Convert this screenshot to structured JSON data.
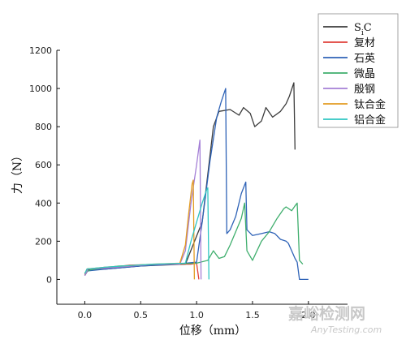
{
  "chart_data": {
    "type": "line",
    "title": "",
    "xlabel": "位移（mm）",
    "ylabel": "力（N）",
    "xlim": [
      -0.25,
      2.35
    ],
    "ylim": [
      -130,
      1200
    ],
    "xticks": [
      "0.0",
      "0.5",
      "1.0",
      "1.5",
      "2.0"
    ],
    "xtick_values": [
      0.0,
      0.5,
      1.0,
      1.5,
      2.0
    ],
    "yticks": [
      "0",
      "200",
      "400",
      "600",
      "800",
      "1000",
      "1200"
    ],
    "ytick_values": [
      0,
      200,
      400,
      600,
      800,
      1000,
      1200
    ],
    "grid": false,
    "legend_position": "top-right",
    "series": [
      {
        "name": "SiC",
        "legend_main": "S",
        "legend_sub": "i",
        "legend_tail": "C",
        "color": "#3c3c3c",
        "points": [
          [
            0.0,
            20
          ],
          [
            0.03,
            50
          ],
          [
            0.2,
            55
          ],
          [
            0.5,
            70
          ],
          [
            0.9,
            80
          ],
          [
            1.05,
            300
          ],
          [
            1.15,
            800
          ],
          [
            1.2,
            880
          ],
          [
            1.3,
            890
          ],
          [
            1.38,
            860
          ],
          [
            1.42,
            900
          ],
          [
            1.48,
            870
          ],
          [
            1.52,
            800
          ],
          [
            1.58,
            830
          ],
          [
            1.62,
            900
          ],
          [
            1.68,
            850
          ],
          [
            1.75,
            880
          ],
          [
            1.8,
            920
          ],
          [
            1.83,
            960
          ],
          [
            1.87,
            1030
          ],
          [
            1.88,
            680
          ]
        ]
      },
      {
        "name": "复材",
        "color": "#e0403a",
        "points": [
          [
            0.0,
            25
          ],
          [
            0.02,
            55
          ],
          [
            0.2,
            60
          ],
          [
            0.4,
            75
          ],
          [
            0.7,
            80
          ],
          [
            0.95,
            80
          ],
          [
            1.0,
            85
          ],
          [
            1.02,
            0
          ]
        ]
      },
      {
        "name": "石英",
        "color": "#2f63b7",
        "points": [
          [
            0.0,
            30
          ],
          [
            0.03,
            45
          ],
          [
            0.2,
            55
          ],
          [
            0.5,
            70
          ],
          [
            0.8,
            80
          ],
          [
            1.0,
            90
          ],
          [
            1.05,
            300
          ],
          [
            1.12,
            620
          ],
          [
            1.18,
            850
          ],
          [
            1.22,
            930
          ],
          [
            1.26,
            1000
          ],
          [
            1.27,
            240
          ],
          [
            1.3,
            260
          ],
          [
            1.35,
            330
          ],
          [
            1.4,
            450
          ],
          [
            1.44,
            510
          ],
          [
            1.45,
            260
          ],
          [
            1.5,
            230
          ],
          [
            1.58,
            240
          ],
          [
            1.65,
            250
          ],
          [
            1.7,
            240
          ],
          [
            1.75,
            210
          ],
          [
            1.8,
            200
          ],
          [
            1.82,
            190
          ],
          [
            1.85,
            150
          ],
          [
            1.88,
            110
          ],
          [
            1.9,
            90
          ],
          [
            1.92,
            0
          ],
          [
            2.0,
            0
          ]
        ]
      },
      {
        "name": "微晶",
        "color": "#3fae6d",
        "points": [
          [
            0.0,
            35
          ],
          [
            0.05,
            50
          ],
          [
            0.3,
            70
          ],
          [
            0.7,
            80
          ],
          [
            1.0,
            85
          ],
          [
            1.1,
            100
          ],
          [
            1.15,
            150
          ],
          [
            1.2,
            110
          ],
          [
            1.25,
            120
          ],
          [
            1.3,
            180
          ],
          [
            1.35,
            250
          ],
          [
            1.4,
            320
          ],
          [
            1.43,
            400
          ],
          [
            1.45,
            150
          ],
          [
            1.5,
            100
          ],
          [
            1.58,
            200
          ],
          [
            1.65,
            250
          ],
          [
            1.72,
            320
          ],
          [
            1.78,
            370
          ],
          [
            1.8,
            380
          ],
          [
            1.85,
            360
          ],
          [
            1.88,
            385
          ],
          [
            1.9,
            400
          ],
          [
            1.92,
            100
          ],
          [
            1.95,
            80
          ]
        ]
      },
      {
        "name": "殷钢",
        "color": "#a47fd6",
        "points": [
          [
            0.0,
            20
          ],
          [
            0.03,
            55
          ],
          [
            0.2,
            60
          ],
          [
            0.6,
            78
          ],
          [
            0.85,
            80
          ],
          [
            0.9,
            150
          ],
          [
            0.95,
            400
          ],
          [
            1.0,
            600
          ],
          [
            1.03,
            730
          ],
          [
            1.04,
            0
          ]
        ]
      },
      {
        "name": "钛合金",
        "color": "#e39c22",
        "points": [
          [
            0.0,
            30
          ],
          [
            0.02,
            55
          ],
          [
            0.2,
            65
          ],
          [
            0.6,
            80
          ],
          [
            0.85,
            85
          ],
          [
            0.9,
            180
          ],
          [
            0.93,
            350
          ],
          [
            0.96,
            500
          ],
          [
            0.97,
            520
          ],
          [
            0.98,
            0
          ]
        ]
      },
      {
        "name": "铝合金",
        "color": "#2fc6c2",
        "points": [
          [
            0.0,
            30
          ],
          [
            0.02,
            55
          ],
          [
            0.2,
            65
          ],
          [
            0.6,
            80
          ],
          [
            0.9,
            85
          ],
          [
            0.95,
            200
          ],
          [
            1.0,
            300
          ],
          [
            1.05,
            400
          ],
          [
            1.09,
            470
          ],
          [
            1.1,
            480
          ],
          [
            1.11,
            0
          ]
        ]
      }
    ]
  },
  "watermark": {
    "text_cn": "嘉峪检测网",
    "text_en": "AnyTesting.com",
    "color": "#c8c8c8"
  }
}
